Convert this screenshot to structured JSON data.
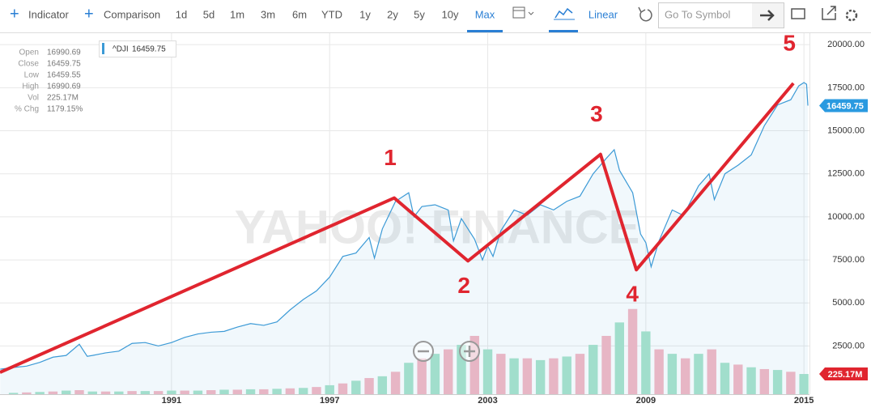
{
  "toolbar": {
    "buttons": [
      "Indicator",
      "Comparison"
    ],
    "ranges": [
      "1d",
      "5d",
      "1m",
      "3m",
      "6m",
      "YTD",
      "1y",
      "2y",
      "5y",
      "10y",
      "Max"
    ],
    "active_range": 10,
    "scale": "Linear",
    "search_placeholder": "Go To Symbol"
  },
  "chart_data": {
    "type": "line",
    "watermark": "YAHOO! FINANCE",
    "xlim": [
      1984.49,
      2015.21
    ],
    "xticks": [
      1991,
      1997,
      2003,
      2009,
      2015
    ],
    "ylim": [
      -300,
      20666
    ],
    "yticks": [
      {
        "value": 2500,
        "label": "2500.00"
      },
      {
        "value": 5000,
        "label": "5000.00"
      },
      {
        "value": 7500,
        "label": "7500.00"
      },
      {
        "value": 10000,
        "label": "10000.00"
      },
      {
        "value": 12500,
        "label": "12500.00"
      },
      {
        "value": 15000,
        "label": "15000.00"
      },
      {
        "value": 17500,
        "label": "17500.00"
      },
      {
        "value": 20000,
        "label": "20000.00"
      }
    ],
    "y2lim": [
      0,
      4025
    ],
    "grid": true,
    "price_tag": "16459.75",
    "volume_tag": "225.17M",
    "stats": [
      {
        "label": "Open",
        "value": 16990.69
      },
      {
        "label": "Close",
        "value": 16459.75
      },
      {
        "label": "Low",
        "value": 16459.55
      },
      {
        "label": "High",
        "value": 16990.69
      },
      {
        "label": "Vol",
        "value": "225.17M"
      },
      {
        "label": "% Chg",
        "value": "1179.15%"
      }
    ],
    "series": [
      {
        "name": "^DJI",
        "color": "#3c9ad6",
        "x": [
          1984.5,
          1985,
          1985.5,
          1986,
          1986.5,
          1987,
          1987.5,
          1987.8,
          1988,
          1988.5,
          1989,
          1989.5,
          1990,
          1990.5,
          1991,
          1991.5,
          1992,
          1992.5,
          1993,
          1993.5,
          1994,
          1994.5,
          1995,
          1995.5,
          1996,
          1996.5,
          1997,
          1997.5,
          1998,
          1998.5,
          1998.7,
          1999,
          1999.5,
          2000,
          2000.2,
          2000.5,
          2001,
          2001.5,
          2001.7,
          2002,
          2002.5,
          2002.8,
          2003,
          2003.2,
          2003.5,
          2004,
          2004.5,
          2005,
          2005.5,
          2006,
          2006.5,
          2007,
          2007.5,
          2007.8,
          2008,
          2008.5,
          2008.8,
          2009,
          2009.2,
          2009.5,
          2010,
          2010.4,
          2010.6,
          2011,
          2011.4,
          2011.6,
          2012,
          2012.5,
          2013,
          2013.5,
          2014,
          2014.5,
          2014.8,
          2015,
          2015.1,
          2015.15
        ],
        "values": [
          1150,
          1250,
          1330,
          1550,
          1850,
          1950,
          2600,
          1900,
          1950,
          2100,
          2200,
          2650,
          2700,
          2500,
          2700,
          3000,
          3200,
          3300,
          3350,
          3600,
          3800,
          3700,
          3900,
          4600,
          5200,
          5700,
          6500,
          7700,
          7900,
          8800,
          7600,
          9300,
          10900,
          11400,
          10000,
          10600,
          10700,
          10400,
          8600,
          9900,
          8700,
          7500,
          8300,
          7700,
          9200,
          10400,
          10100,
          10700,
          10400,
          10900,
          11200,
          12500,
          13400,
          13900,
          12700,
          11400,
          9000,
          8500,
          7100,
          8600,
          10400,
          10100,
          10600,
          11800,
          12500,
          11000,
          12500,
          13000,
          13600,
          15300,
          16500,
          16800,
          17600,
          17800,
          17700,
          16459.75
        ]
      },
      {
        "name": "Vol",
        "type": "bar",
        "axis": "y2",
        "colors": [
          "#a9e3cc",
          "#f5b8c4"
        ],
        "x": [
          1985,
          1985.5,
          1986,
          1986.5,
          1987,
          1987.5,
          1988,
          1988.5,
          1989,
          1989.5,
          1990,
          1990.5,
          1991,
          1991.5,
          1992,
          1992.5,
          1993,
          1993.5,
          1994,
          1994.5,
          1995,
          1995.5,
          1996,
          1996.5,
          1997,
          1997.5,
          1998,
          1998.5,
          1999,
          1999.5,
          2000,
          2000.5,
          2001,
          2001.5,
          2002,
          2002.5,
          2003,
          2003.5,
          2004,
          2004.5,
          2005,
          2005.5,
          2006,
          2006.5,
          2007,
          2007.5,
          2008,
          2008.5,
          2009,
          2009.5,
          2010,
          2010.5,
          2011,
          2011.5,
          2012,
          2012.5,
          2013,
          2013.5,
          2014,
          2014.5,
          2015
        ],
        "values": [
          15,
          20,
          25,
          30,
          40,
          45,
          30,
          30,
          30,
          35,
          35,
          35,
          40,
          40,
          40,
          45,
          50,
          50,
          55,
          55,
          60,
          65,
          70,
          80,
          100,
          120,
          150,
          180,
          200,
          250,
          350,
          400,
          450,
          500,
          550,
          650,
          500,
          450,
          400,
          400,
          380,
          400,
          420,
          450,
          550,
          650,
          800,
          950,
          700,
          500,
          450,
          400,
          450,
          500,
          350,
          330,
          300,
          280,
          270,
          250,
          225.17
        ]
      }
    ],
    "annotation": {
      "color": "#e0252f",
      "x": [
        1984.49,
        1999.45,
        2002.25,
        2007.28,
        2008.64,
        2014.6
      ],
      "values": [
        966,
        11097,
        7439,
        13630,
        6923,
        17758
      ],
      "labels": [
        null,
        "1",
        "2",
        "3",
        "4",
        "5"
      ]
    }
  }
}
